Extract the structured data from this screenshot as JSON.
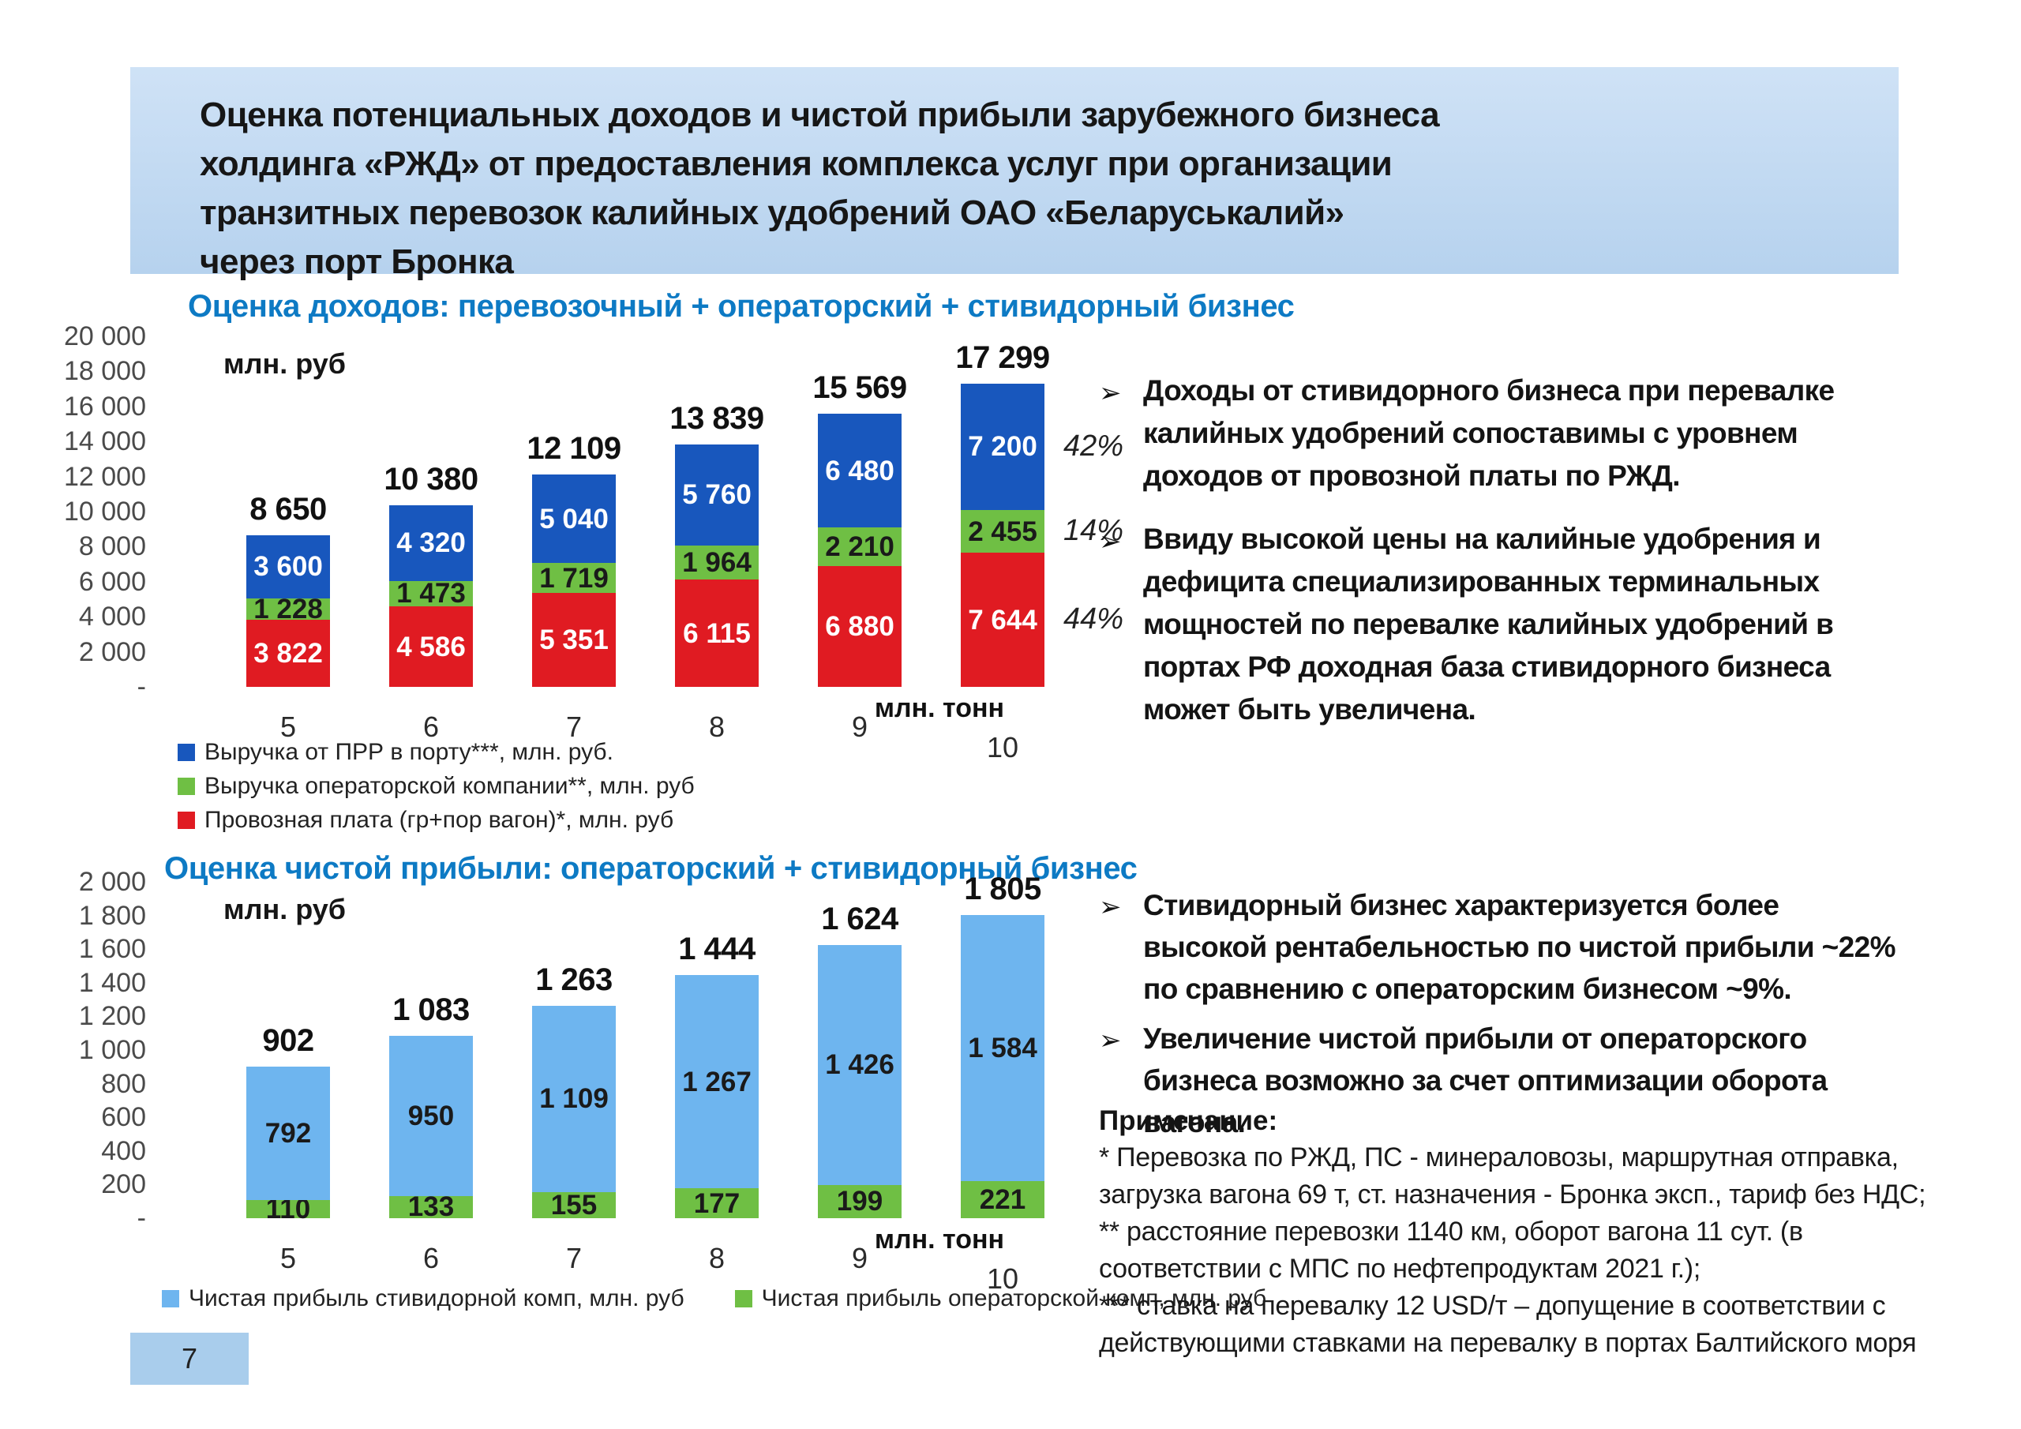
{
  "slide": {
    "title_lines": [
      "Оценка потенциальных доходов и чистой прибыли зарубежного бизнеса",
      "холдинга «РЖД» от  предоставления комплекса услуг при организации",
      "транзитных перевозок калийных удобрений ОАО «Беларуськалий»",
      "через порт Бронка"
    ],
    "page_number": "7",
    "colors": {
      "band": "#b6d2ee",
      "band_top": "#cfe2f6",
      "section_title": "#0d7ac4",
      "bar_blue": "#1857bd",
      "bar_green": "#6fbf44",
      "bar_red": "#e01b22",
      "bar_lightblue": "#6eb5ef",
      "page_box": "#a9cdec"
    }
  },
  "icons": {
    "bullet_glyph": "➢"
  },
  "sections": {
    "revenue": {
      "bullets": [
        "Доходы от стивидорного бизнеса при перевалке калийных удобрений сопоставимы с уровнем доходов от провозной платы по РЖД.",
        "Ввиду высокой цены на калийные удобрения и дефицита специализированных терминальных мощностей по перевалке калийных удобрений в портах РФ доходная база стивидорного бизнеса может быть увеличена."
      ]
    },
    "profit": {
      "bullets": [
        "Стивидорный бизнес характеризуется более высокой рентабельностью по чистой прибыли ~22% по сравнению с операторским бизнесом ~9%.",
        "Увеличение чистой прибыли от операторского бизнеса возможно за счет оптимизации оборота вагона."
      ],
      "notes": {
        "header": "Примечание:",
        "items": [
          "* Перевозка по РЖД,  ПС - минераловозы, маршрутная отправка, загрузка вагона 69 т, ст. назначения - Бронка эксп., тариф без НДС;",
          "** расстояние перевозки 1140 км, оборот вагона 11 сут. (в соответствии с МПС по нефтепродуктам 2021 г.);",
          "*** ставка на перевалку 12 USD/т – допущение в соответствии с действующими ставками на перевалку в портах Балтийского моря"
        ]
      }
    }
  },
  "chart_data": [
    {
      "type": "bar",
      "stacked": true,
      "title": "Оценка доходов: перевозочный + операторский + стивидорный бизнес",
      "ylabel": "млн. руб",
      "xlabel": "млн. тонн",
      "categories": [
        "5",
        "6",
        "7",
        "8",
        "9",
        "10"
      ],
      "ylim": [
        0,
        20000
      ],
      "yticks": [
        "20 000",
        "18 000",
        "16 000",
        "14 000",
        "12 000",
        "10 000",
        "8 000",
        "6 000",
        "4 000",
        "2 000",
        "-"
      ],
      "grid": false,
      "legend_position": "bottom-left-vertical",
      "legend_order": [
        2,
        1,
        0
      ],
      "series": [
        {
          "name": "Провозная плата (гр+пор вагон)*, млн. руб",
          "color": "#e01b22",
          "label_color": "#ffffff",
          "values": [
            3822,
            4586,
            5351,
            6115,
            6880,
            7644
          ],
          "labels": [
            "3 822",
            "4 586",
            "5 351",
            "6 115",
            "6 880",
            "7 644"
          ],
          "percent_label": "44%"
        },
        {
          "name": "Выручка операторской компании**, млн. руб",
          "color": "#6fbf44",
          "label_color": "#1a1a1a",
          "values": [
            1228,
            1473,
            1719,
            1964,
            2210,
            2455
          ],
          "labels": [
            "1 228",
            "1 473",
            "1 719",
            "1 964",
            "2 210",
            "2 455"
          ],
          "percent_label": "14%"
        },
        {
          "name": "Выручка от ПРР в порту***, млн. руб.",
          "color": "#1857bd",
          "label_color": "#ffffff",
          "values": [
            3600,
            4320,
            5040,
            5760,
            6480,
            7200
          ],
          "labels": [
            "3 600",
            "4 320",
            "5 040",
            "5 760",
            "6 480",
            "7 200"
          ],
          "percent_label": "42%"
        }
      ],
      "totals": [
        "8 650",
        "10 380",
        "12 109",
        "13 839",
        "15 569",
        "17 299"
      ]
    },
    {
      "type": "bar",
      "stacked": true,
      "title": "Оценка чистой прибыли: операторский + стивидорный бизнес",
      "ylabel": "млн. руб",
      "xlabel": "млн. тонн",
      "categories": [
        "5",
        "6",
        "7",
        "8",
        "9",
        "10"
      ],
      "ylim": [
        0,
        2000
      ],
      "yticks": [
        "2 000",
        "1 800",
        "1 600",
        "1 400",
        "1 200",
        "1 000",
        "800",
        "600",
        "400",
        "200",
        "-"
      ],
      "grid": false,
      "legend_position": "bottom-horizontal",
      "legend_order": [
        1,
        0
      ],
      "series": [
        {
          "name": "Чистая прибыль операторской комп, млн. руб",
          "color": "#6fbf44",
          "label_color": "#1a1a1a",
          "values": [
            110,
            133,
            155,
            177,
            199,
            221
          ],
          "labels": [
            "110",
            "133",
            "155",
            "177",
            "199",
            "221"
          ]
        },
        {
          "name": "Чистая прибыль стивидорной комп, млн. руб",
          "color": "#6eb5ef",
          "label_color": "#1a1a1a",
          "values": [
            792,
            950,
            1109,
            1267,
            1426,
            1584
          ],
          "labels": [
            "792",
            "950",
            "1 109",
            "1 267",
            "1 426",
            "1 584"
          ]
        }
      ],
      "totals": [
        "902",
        "1 083",
        "1 263",
        "1 444",
        "1 624",
        "1 805"
      ]
    }
  ]
}
